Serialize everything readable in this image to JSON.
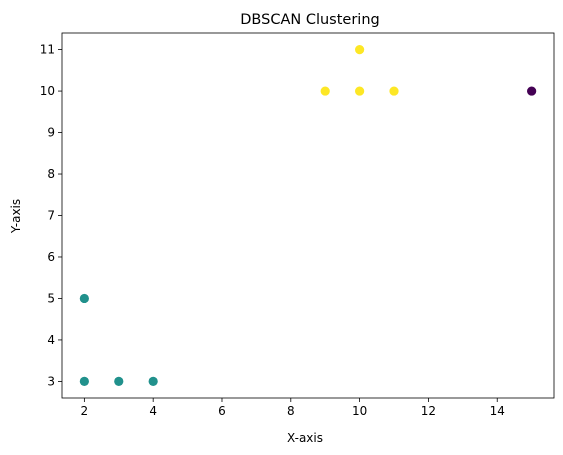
{
  "chart_data": {
    "type": "scatter",
    "title": "DBSCAN Clustering",
    "xlabel": "X-axis",
    "ylabel": "Y-axis",
    "xlim": [
      1.35,
      15.65
    ],
    "ylim": [
      2.6,
      11.4
    ],
    "xticks": [
      2,
      4,
      6,
      8,
      10,
      12,
      14
    ],
    "yticks": [
      3,
      4,
      5,
      6,
      7,
      8,
      9,
      10,
      11
    ],
    "grid": false,
    "legend": "none",
    "colormap": "viridis",
    "cluster_colors": {
      "-1": "#440154",
      "0": "#21918c",
      "1": "#fde725"
    },
    "points": [
      {
        "x": 2,
        "y": 3,
        "cluster": 0
      },
      {
        "x": 2,
        "y": 5,
        "cluster": 0
      },
      {
        "x": 3,
        "y": 3,
        "cluster": 0
      },
      {
        "x": 4,
        "y": 3,
        "cluster": 0
      },
      {
        "x": 9,
        "y": 10,
        "cluster": 1
      },
      {
        "x": 10,
        "y": 10,
        "cluster": 1
      },
      {
        "x": 10,
        "y": 11,
        "cluster": 1
      },
      {
        "x": 11,
        "y": 10,
        "cluster": 1
      },
      {
        "x": 15,
        "y": 10,
        "cluster": -1
      }
    ]
  }
}
